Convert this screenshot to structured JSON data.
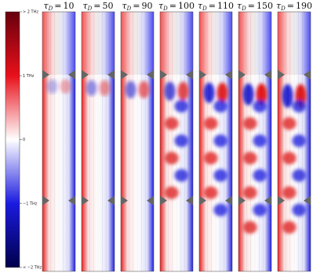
{
  "colorbar": {
    "lim": [
      -2,
      2
    ],
    "ticks": [
      {
        "value": 2,
        "label": "> 2 THz"
      },
      {
        "value": 1,
        "label": "1 THz"
      },
      {
        "value": 0,
        "label": "0"
      },
      {
        "value": -1,
        "label": "−1 THz"
      },
      {
        "value": -2,
        "label": "< −2 THz"
      }
    ]
  },
  "panel_label": {
    "symbol": "τ",
    "subscript": "D",
    "relation": "="
  },
  "panels": [
    10,
    50,
    90,
    100,
    110,
    150,
    190
  ]
}
